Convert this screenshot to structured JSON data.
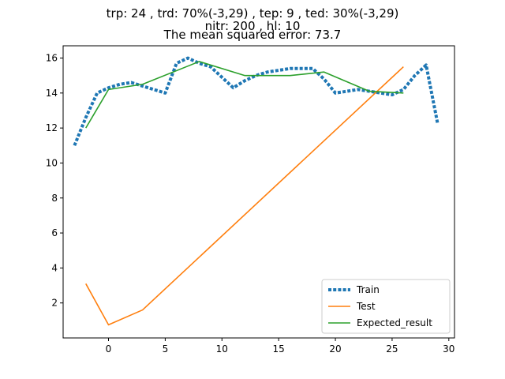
{
  "chart_data": {
    "type": "line",
    "title_lines": [
      "trp: 24 , trd: 70%(-3,29) , tep: 9 , ted: 30%(-3,29)",
      "nitr: 200 , hl: 10",
      "The mean squared error: 73.7"
    ],
    "xlim": [
      -4,
      30.5
    ],
    "ylim": [
      0,
      16.7
    ],
    "xticks": [
      0,
      5,
      10,
      15,
      20,
      25,
      30
    ],
    "yticks": [
      2,
      4,
      6,
      8,
      10,
      12,
      14,
      16
    ],
    "grid": false,
    "legend_position": "lower-right",
    "series": [
      {
        "name": "Train",
        "color": "#1f77b4",
        "style": "dotted",
        "x": [
          -3,
          -2,
          -1,
          0,
          1,
          2,
          3,
          4,
          5,
          6,
          7,
          8,
          9,
          10,
          11,
          12,
          13,
          14,
          15,
          16,
          17,
          18,
          19,
          20,
          21,
          22,
          23,
          24,
          25,
          26,
          27,
          28,
          29
        ],
        "y": [
          11.0,
          12.6,
          14.0,
          14.3,
          14.5,
          14.6,
          14.4,
          14.2,
          14.0,
          15.7,
          16.0,
          15.7,
          15.5,
          14.9,
          14.3,
          14.7,
          15.0,
          15.2,
          15.3,
          15.4,
          15.4,
          15.4,
          14.8,
          14.0,
          14.1,
          14.2,
          14.1,
          14.0,
          13.9,
          14.2,
          15.0,
          15.6,
          12.3
        ]
      },
      {
        "name": "Test",
        "color": "#ff7f0e",
        "style": "solid",
        "x": [
          -2,
          0,
          3,
          26
        ],
        "y": [
          3.1,
          0.75,
          1.6,
          15.5
        ]
      },
      {
        "name": "Expected_result",
        "color": "#2ca02c",
        "style": "solid",
        "x": [
          -2,
          0,
          3,
          8,
          12,
          16,
          19,
          23,
          26
        ],
        "y": [
          12.0,
          14.2,
          14.5,
          15.8,
          15.0,
          15.0,
          15.2,
          14.1,
          14.0
        ]
      }
    ]
  }
}
